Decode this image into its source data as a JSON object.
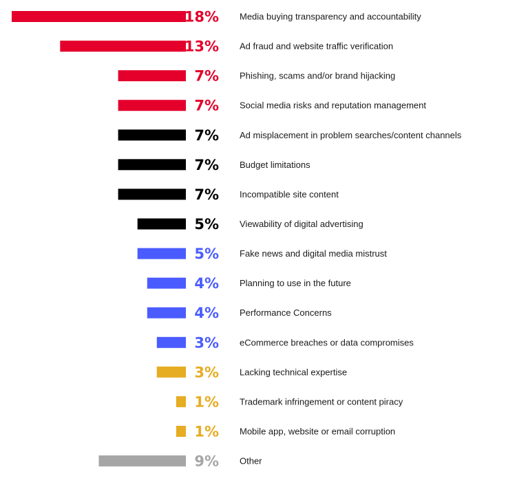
{
  "chart_data": {
    "type": "bar",
    "orientation": "horizontal",
    "title": "",
    "xlabel": "",
    "ylabel": "",
    "grid": false,
    "legend": "none",
    "xlim": [
      0,
      18
    ],
    "categories": [
      "Media buying transparency and accountability",
      "Ad fraud and website traffic verification",
      "Phishing, scams and/or brand hijacking",
      "Social media risks and reputation management",
      "Ad misplacement in problem searches/content channels",
      "Budget limitations",
      "Incompatible site content",
      "Viewability of digital advertising",
      "Fake news and digital media mistrust",
      "Planning to use in the future",
      "Performance Concerns",
      "eCommerce breaches or data compromises",
      "Lacking technical expertise",
      "Trademark infringement or content piracy",
      "Mobile app, website or email corruption",
      "Other"
    ],
    "values": [
      18,
      13,
      7,
      7,
      7,
      7,
      7,
      5,
      5,
      4,
      4,
      3,
      3,
      1,
      1,
      9
    ],
    "data_labels": [
      "18%",
      "13%",
      "7%",
      "7%",
      "7%",
      "7%",
      "7%",
      "5%",
      "5%",
      "4%",
      "4%",
      "3%",
      "3%",
      "1%",
      "1%",
      "9%"
    ],
    "bar_colors": [
      "#e4002b",
      "#e4002b",
      "#e4002b",
      "#e4002b",
      "#000000",
      "#000000",
      "#000000",
      "#000000",
      "#4a5cff",
      "#4a5cff",
      "#4a5cff",
      "#4a5cff",
      "#e6ac22",
      "#e6ac22",
      "#e6ac22",
      "#a6a6a6"
    ],
    "label_colors": [
      "#e4002b",
      "#e4002b",
      "#e4002b",
      "#e4002b",
      "#000000",
      "#000000",
      "#000000",
      "#000000",
      "#4a5cff",
      "#4a5cff",
      "#4a5cff",
      "#4a5cff",
      "#e6ac22",
      "#e6ac22",
      "#e6ac22",
      "#a6a6a6"
    ]
  }
}
